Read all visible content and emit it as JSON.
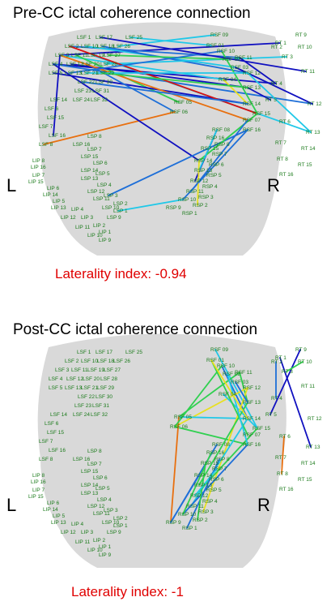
{
  "panels": [
    {
      "title": "Pre-CC ictal coherence connection",
      "left_label": "L",
      "right_label": "R",
      "laterality": "Laterality index: -0.94"
    },
    {
      "title": "Post-CC ictal coherence connection",
      "left_label": "L",
      "right_label": "R",
      "laterality": "Laterality index: -1"
    }
  ],
  "electrode_labels": [
    "LSF 1",
    "LSF 17",
    "LSF 25",
    "LSF 2",
    "LSF 10",
    "LSF 18",
    "LSF 26",
    "LSF 3",
    "LSF 11",
    "LSF 19",
    "LSF 27",
    "LSF 4",
    "LSF 12",
    "LSF 20",
    "LSF 28",
    "LSF 5",
    "LSF 13",
    "LSF 21",
    "LSF 29",
    "LSF 22",
    "LSF 30",
    "LSF 23",
    "LSF 31",
    "LSF 14",
    "LSF 24",
    "LSF 32",
    "LSF 6",
    "LSF 15",
    "LSF 7",
    "LSF 16",
    "LSF 8",
    "LSP 8",
    "LSP 16",
    "LSP 7",
    "LSP 15",
    "LSP 6",
    "LSP 14",
    "LSP 5",
    "LSP 13",
    "LSP 4",
    "LSP 12",
    "LSP 3",
    "LSP 11",
    "LSP 2",
    "LSP 10",
    "LSP 1",
    "LSP 9",
    "LIP 8",
    "LIP 16",
    "LIP 7",
    "LIP 15",
    "LIP 6",
    "LIP 14",
    "LIP 5",
    "LIP 13",
    "LIP 4",
    "LIP 12",
    "LIP 3",
    "LIP 11",
    "LIP 2",
    "LIP 10",
    "LIP 1",
    "LIP 9",
    "RSF 09",
    "RSF 01",
    "RSF 10",
    "RSF 02",
    "RSF 11",
    "RSF 03",
    "RSF 12",
    "RSF 04",
    "RSF 13",
    "RSF 05",
    "RSF 14",
    "RSF 06",
    "RSF 15",
    "RSF 07",
    "RSF 16",
    "RSF 08",
    "RT 1",
    "RT 9",
    "RT 2",
    "RT 10",
    "RT 3",
    "RT 11",
    "RT 4",
    "RT 12",
    "RT 5",
    "RT 13",
    "RT 6",
    "RT 14",
    "RT 7",
    "RT 15",
    "RT 8",
    "RT 16",
    "RSP 16",
    "RSP 8",
    "RSP 15",
    "RSP 7",
    "RSP 14",
    "RSP 6",
    "RSP 13",
    "RSP 5",
    "RSP 12",
    "RSP 4",
    "RSP 11",
    "RSP 3",
    "RSP 10",
    "RSP 2",
    "RSP 9",
    "RSP 1"
  ],
  "colors": {
    "strong": "#1010c0",
    "mid_blue": "#1e6fd8",
    "cyan": "#20c8e8",
    "green": "#30d050",
    "yellow": "#e8e020",
    "orange": "#e87010",
    "red": "#d81010",
    "label_green": "#1a7a1a",
    "head_gray": "#d9d9d9",
    "laterality_red": "#e00000"
  }
}
